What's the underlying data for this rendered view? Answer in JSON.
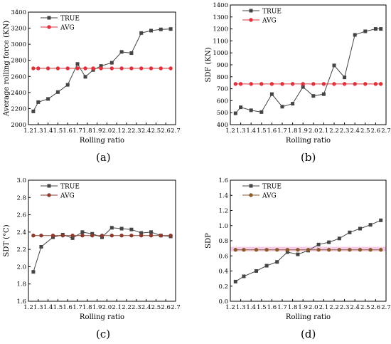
{
  "chart_data": [
    {
      "type": "line",
      "panel_label": "(a)",
      "title": "",
      "xlabel": "Rolling ratio",
      "ylabel": "Average rolling force (KN)",
      "x": [
        1.25,
        1.3,
        1.4,
        1.5,
        1.6,
        1.7,
        1.78,
        1.86,
        1.94,
        2.05,
        2.15,
        2.25,
        2.35,
        2.45,
        2.55,
        2.65
      ],
      "xticks": [
        "1.2",
        "1.3",
        "1.4",
        "1.5",
        "1.6",
        "1.7",
        "1.8",
        "1.9",
        "2.0",
        "2.1",
        "2.2",
        "2.3",
        "2.4",
        "2.5",
        "2.6",
        "2.7"
      ],
      "xlim": [
        1.2,
        2.7
      ],
      "ylim": [
        2000,
        3400
      ],
      "yticks": [
        "2000",
        "2200",
        "2400",
        "2600",
        "2800",
        "3000",
        "3200",
        "3400"
      ],
      "legend": "top-left",
      "series": [
        {
          "name": "TRUE",
          "color": "#444444",
          "marker": "square",
          "values": [
            2165,
            2280,
            2320,
            2405,
            2495,
            2755,
            2595,
            2680,
            2730,
            2770,
            2905,
            2890,
            3140,
            3170,
            3185,
            3190
          ]
        },
        {
          "name": "AVG",
          "color": "#e0303a",
          "marker": "circle",
          "values": [
            2700,
            2700,
            2700,
            2700,
            2700,
            2700,
            2700,
            2700,
            2700,
            2700,
            2700,
            2700,
            2700,
            2700,
            2700,
            2700
          ]
        }
      ]
    },
    {
      "type": "line",
      "panel_label": "(b)",
      "title": "",
      "xlabel": "Rolling ratio",
      "ylabel": "SDF (KN)",
      "x": [
        1.25,
        1.3,
        1.4,
        1.5,
        1.6,
        1.7,
        1.8,
        1.9,
        2.0,
        2.1,
        2.2,
        2.3,
        2.4,
        2.5,
        2.6,
        2.65
      ],
      "xticks": [
        "1.2",
        "1.3",
        "1.4",
        "1.5",
        "1.6",
        "1.7",
        "1.8",
        "1.9",
        "2.0",
        "2.1",
        "2.2",
        "2.3",
        "2.4",
        "2.5",
        "2.6",
        "2.7"
      ],
      "xlim": [
        1.2,
        2.7
      ],
      "ylim": [
        400,
        1400
      ],
      "yticks": [
        "400",
        "500",
        "600",
        "700",
        "800",
        "900",
        "1000",
        "1100",
        "1200",
        "1300",
        "1400"
      ],
      "legend": "top-left",
      "series": [
        {
          "name": "TRUE",
          "color": "#444444",
          "marker": "square",
          "values": [
            495,
            545,
            520,
            505,
            655,
            550,
            575,
            715,
            640,
            655,
            895,
            795,
            1150,
            1180,
            1200,
            1200
          ]
        },
        {
          "name": "AVG",
          "color": "#e0303a",
          "marker": "circle",
          "values": [
            740,
            740,
            740,
            740,
            740,
            740,
            740,
            740,
            740,
            740,
            740,
            740,
            740,
            740,
            740,
            740
          ]
        }
      ]
    },
    {
      "type": "line",
      "panel_label": "(c)",
      "title": "",
      "xlabel": "Rolling ratio",
      "ylabel": "SDT (°C)",
      "x": [
        1.25,
        1.33,
        1.45,
        1.55,
        1.65,
        1.75,
        1.85,
        1.95,
        2.05,
        2.15,
        2.25,
        2.35,
        2.45,
        2.55,
        2.65
      ],
      "xticks": [
        "1.2",
        "1.3",
        "1.4",
        "1.5",
        "1.6",
        "1.7",
        "1.8",
        "1.9",
        "2.0",
        "2.1",
        "2.2",
        "2.3",
        "2.4",
        "2.5",
        "2.6",
        "2.7"
      ],
      "xlim": [
        1.2,
        2.7
      ],
      "ylim": [
        1.6,
        3.0
      ],
      "yticks": [
        "1.6",
        "1.8",
        "2.0",
        "2.2",
        "2.4",
        "2.6",
        "2.8",
        "3.0"
      ],
      "legend": "top-left",
      "series": [
        {
          "name": "TRUE",
          "color": "#444444",
          "marker": "square",
          "values": [
            1.94,
            2.23,
            2.34,
            2.37,
            2.33,
            2.4,
            2.38,
            2.34,
            2.45,
            2.44,
            2.43,
            2.39,
            2.4,
            2.36,
            2.35
          ]
        },
        {
          "name": "AVG",
          "color": "#8b3a2e",
          "marker": "circle",
          "values": [
            2.36,
            2.36,
            2.36,
            2.36,
            2.36,
            2.36,
            2.36,
            2.36,
            2.36,
            2.36,
            2.36,
            2.36,
            2.36,
            2.36,
            2.36
          ]
        }
      ]
    },
    {
      "type": "line",
      "panel_label": "(d)",
      "title": "",
      "xlabel": "Rolling ratio",
      "ylabel": "SDP",
      "x": [
        1.25,
        1.33,
        1.45,
        1.55,
        1.65,
        1.75,
        1.85,
        1.95,
        2.05,
        2.15,
        2.25,
        2.35,
        2.45,
        2.55,
        2.65
      ],
      "xticks": [
        "1.2",
        "1.3",
        "1.4",
        "1.5",
        "1.6",
        "1.7",
        "1.8",
        "1.9",
        "2.0",
        "2.1",
        "2.2",
        "2.3",
        "2.4",
        "2.5",
        "2.6",
        "2.7"
      ],
      "xlim": [
        1.2,
        2.7
      ],
      "ylim": [
        0.0,
        1.6
      ],
      "yticks": [
        "0.0",
        "0.2",
        "0.4",
        "0.6",
        "0.8",
        "1.0",
        "1.2",
        "1.4",
        "1.6"
      ],
      "legend": "top-left",
      "band": {
        "from": 0.66,
        "to": 0.72,
        "color": "#f3c6e6"
      },
      "series": [
        {
          "name": "TRUE",
          "color": "#444444",
          "marker": "square",
          "values": [
            0.26,
            0.33,
            0.4,
            0.47,
            0.52,
            0.65,
            0.62,
            0.67,
            0.75,
            0.78,
            0.83,
            0.91,
            0.96,
            1.01,
            1.07
          ]
        },
        {
          "name": "AVG",
          "color": "#8b5a2b",
          "marker": "circle",
          "values": [
            0.68,
            0.68,
            0.68,
            0.68,
            0.68,
            0.68,
            0.68,
            0.68,
            0.68,
            0.68,
            0.68,
            0.68,
            0.68,
            0.68,
            0.68
          ]
        }
      ]
    }
  ]
}
